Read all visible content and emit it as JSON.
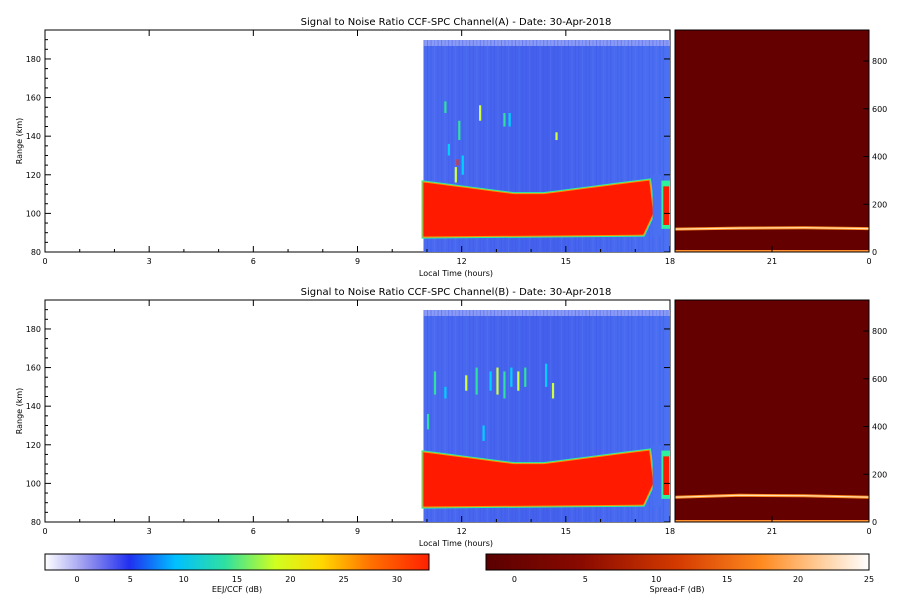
{
  "panels": [
    {
      "title": "Signal to Noise Ratio CCF-SPC Channel(A) - Date: 30-Apr-2018",
      "ylabel": "Range (km)",
      "xlabel": "Local Time (hours)",
      "series_ejm": {
        "name": "EEJ/CCF",
        "layer_top_km": [
          116,
          115,
          114,
          113,
          112,
          111,
          110,
          110,
          110,
          111,
          112,
          113,
          114,
          115,
          116,
          117
        ],
        "irregularities": [
          {
            "t": 11.5,
            "r0": 152,
            "r1": 158
          },
          {
            "t": 11.6,
            "r0": 130,
            "r1": 136
          },
          {
            "t": 11.8,
            "r0": 116,
            "r1": 124
          },
          {
            "t": 11.9,
            "r0": 138,
            "r1": 148
          },
          {
            "t": 12.0,
            "r0": 120,
            "r1": 130
          },
          {
            "t": 12.5,
            "r0": 148,
            "r1": 156
          },
          {
            "t": 13.2,
            "r0": 145,
            "r1": 152
          },
          {
            "t": 13.35,
            "r0": 145,
            "r1": 152
          },
          {
            "t": 14.7,
            "r0": 138,
            "r1": 142
          }
        ]
      },
      "series_spread": {
        "name": "Spread-F",
        "trace_right_km": [
          96,
          100,
          102,
          98
        ]
      }
    },
    {
      "title": "Signal to Noise Ratio CCF-SPC Channel(B) - Date: 30-Apr-2018",
      "ylabel": "Range (km)",
      "xlabel": "Local Time (hours)",
      "series_ejm": {
        "name": "EEJ/CCF",
        "layer_top_km": [
          116,
          115,
          114,
          113,
          112,
          111,
          110,
          110,
          110,
          111,
          112,
          113,
          114,
          115,
          116,
          117
        ],
        "irregularities": [
          {
            "t": 11.2,
            "r0": 146,
            "r1": 158
          },
          {
            "t": 11.5,
            "r0": 144,
            "r1": 150
          },
          {
            "t": 12.1,
            "r0": 148,
            "r1": 156
          },
          {
            "t": 12.4,
            "r0": 146,
            "r1": 160
          },
          {
            "t": 12.8,
            "r0": 148,
            "r1": 158
          },
          {
            "t": 13.0,
            "r0": 146,
            "r1": 160
          },
          {
            "t": 13.2,
            "r0": 144,
            "r1": 158
          },
          {
            "t": 13.4,
            "r0": 150,
            "r1": 160
          },
          {
            "t": 13.6,
            "r0": 148,
            "r1": 158
          },
          {
            "t": 13.8,
            "r0": 150,
            "r1": 160
          },
          {
            "t": 14.4,
            "r0": 150,
            "r1": 162
          },
          {
            "t": 14.6,
            "r0": 144,
            "r1": 152
          },
          {
            "t": 11.0,
            "r0": 128,
            "r1": 136
          },
          {
            "t": 12.6,
            "r0": 122,
            "r1": 130
          }
        ]
      },
      "series_spread": {
        "name": "Spread-F",
        "trace_right_km": [
          104,
          112,
          110,
          104
        ]
      }
    }
  ],
  "axes": {
    "x_left": {
      "min": 0,
      "max": 18,
      "ticks": [
        0,
        3,
        6,
        9,
        12,
        15,
        18
      ]
    },
    "x_right": {
      "min": 18,
      "max": 24,
      "ticks": [
        21
      ],
      "tick_labels_right": [
        "21",
        "0"
      ]
    },
    "y_left": {
      "min": 80,
      "max": 195,
      "ticks": [
        80,
        100,
        120,
        140,
        160,
        180
      ]
    },
    "y_right": {
      "min": 0,
      "max": 930,
      "ticks": [
        0,
        200,
        400,
        600,
        800
      ]
    }
  },
  "data_start_hour": 10.9,
  "data_end_hour": 18.0,
  "colorbars": [
    {
      "label": "EEJ/CCF (dB)",
      "min": -3,
      "max": 33,
      "ticks": [
        0,
        5,
        10,
        15,
        20,
        25,
        30
      ]
    },
    {
      "label": "Spread-F (dB)",
      "min": -2,
      "max": 25,
      "ticks": [
        0,
        5,
        10,
        15,
        20,
        25
      ]
    }
  ],
  "chart_data": [
    {
      "type": "heatmap",
      "title": "Signal to Noise Ratio CCF-SPC Channel(A) - Date: 30-Apr-2018",
      "xlabel": "Local Time (hours)",
      "ylabel": "Range (km)",
      "xlim": [
        0,
        18
      ],
      "ylim": [
        80,
        195
      ],
      "colorbar": "EEJ/CCF (dB)"
    },
    {
      "type": "heatmap",
      "title": "Signal to Noise Ratio CCF-SPC Channel(B) - Date: 30-Apr-2018",
      "xlabel": "Local Time (hours)",
      "ylabel": "Range (km)",
      "xlim": [
        0,
        18
      ],
      "ylim": [
        80,
        195
      ],
      "colorbar": "EEJ/CCF (dB)"
    },
    {
      "type": "heatmap",
      "title": "",
      "xlim": [
        18,
        24
      ],
      "ylim": [
        0,
        930
      ],
      "colorbar": "Spread-F (dB)"
    }
  ]
}
